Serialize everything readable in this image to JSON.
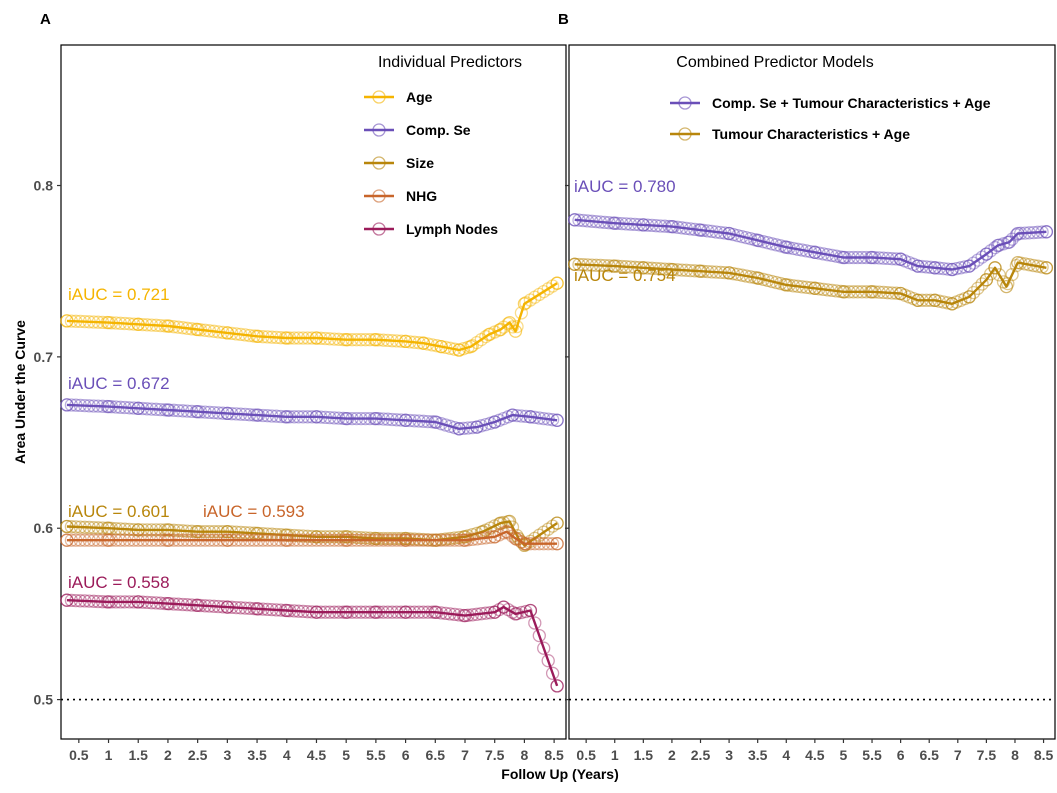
{
  "chart_data": [
    {
      "panel": "A",
      "type": "line",
      "legend_title": "Individual Predictors",
      "legend_position": "top-right",
      "xlabel": "Follow Up (Years)",
      "ylabel": "Area Under the Curve",
      "xlim": [
        0.2,
        8.7
      ],
      "ylim": [
        0.477,
        0.882
      ],
      "x_ticks": [
        "0.5",
        "1",
        "1.5",
        "2",
        "2.5",
        "3",
        "3.5",
        "4",
        "4.5",
        "5",
        "5.5",
        "6",
        "6.5",
        "7",
        "7.5",
        "8",
        "8.5"
      ],
      "y_ticks": [
        "0.5",
        "0.6",
        "0.7",
        "0.8"
      ],
      "reference_line": 0.5,
      "grid": false,
      "series": [
        {
          "name": "Age",
          "color": "#F5B400",
          "iauc_label": "iAUC = 0.721",
          "points": [
            [
              0.3,
              0.721
            ],
            [
              1.0,
              0.72
            ],
            [
              1.5,
              0.719
            ],
            [
              2.0,
              0.718
            ],
            [
              2.5,
              0.716
            ],
            [
              3.0,
              0.714
            ],
            [
              3.5,
              0.712
            ],
            [
              4.0,
              0.711
            ],
            [
              4.5,
              0.711
            ],
            [
              5.0,
              0.71
            ],
            [
              5.5,
              0.71
            ],
            [
              6.0,
              0.709
            ],
            [
              6.3,
              0.708
            ],
            [
              6.6,
              0.706
            ],
            [
              6.9,
              0.704
            ],
            [
              7.1,
              0.706
            ],
            [
              7.4,
              0.713
            ],
            [
              7.6,
              0.716
            ],
            [
              7.75,
              0.72
            ],
            [
              7.85,
              0.715
            ],
            [
              8.0,
              0.731
            ],
            [
              8.55,
              0.743
            ]
          ]
        },
        {
          "name": "Comp. Se",
          "color": "#6A4FB8",
          "iauc_label": "iAUC = 0.672",
          "points": [
            [
              0.3,
              0.672
            ],
            [
              1.0,
              0.671
            ],
            [
              1.5,
              0.67
            ],
            [
              2.0,
              0.669
            ],
            [
              2.5,
              0.668
            ],
            [
              3.0,
              0.667
            ],
            [
              3.5,
              0.666
            ],
            [
              4.0,
              0.665
            ],
            [
              4.5,
              0.665
            ],
            [
              5.0,
              0.664
            ],
            [
              5.5,
              0.664
            ],
            [
              6.0,
              0.663
            ],
            [
              6.5,
              0.662
            ],
            [
              6.9,
              0.658
            ],
            [
              7.2,
              0.659
            ],
            [
              7.5,
              0.662
            ],
            [
              7.8,
              0.666
            ],
            [
              8.1,
              0.665
            ],
            [
              8.55,
              0.663
            ]
          ]
        },
        {
          "name": "Size",
          "color": "#B8860B",
          "iauc_label": "iAUC = 0.601",
          "points": [
            [
              0.3,
              0.601
            ],
            [
              1.0,
              0.6
            ],
            [
              1.5,
              0.599
            ],
            [
              2.0,
              0.599
            ],
            [
              2.5,
              0.598
            ],
            [
              3.0,
              0.598
            ],
            [
              3.5,
              0.597
            ],
            [
              4.0,
              0.596
            ],
            [
              4.5,
              0.595
            ],
            [
              5.0,
              0.595
            ],
            [
              5.5,
              0.594
            ],
            [
              6.0,
              0.594
            ],
            [
              6.5,
              0.593
            ],
            [
              7.0,
              0.595
            ],
            [
              7.3,
              0.598
            ],
            [
              7.6,
              0.603
            ],
            [
              7.75,
              0.604
            ],
            [
              7.9,
              0.594
            ],
            [
              8.0,
              0.59
            ],
            [
              8.55,
              0.603
            ]
          ]
        },
        {
          "name": "NHG",
          "color": "#C8652A",
          "iauc_label": "iAUC = 0.593",
          "points": [
            [
              0.3,
              0.593
            ],
            [
              1.0,
              0.593
            ],
            [
              2.0,
              0.593
            ],
            [
              3.0,
              0.593
            ],
            [
              4.0,
              0.593
            ],
            [
              5.0,
              0.593
            ],
            [
              6.0,
              0.593
            ],
            [
              7.0,
              0.593
            ],
            [
              7.5,
              0.595
            ],
            [
              7.7,
              0.598
            ],
            [
              7.85,
              0.594
            ],
            [
              8.0,
              0.591
            ],
            [
              8.55,
              0.591
            ]
          ]
        },
        {
          "name": "Lymph Nodes",
          "color": "#9B1B5A",
          "iauc_label": "iAUC = 0.558",
          "points": [
            [
              0.3,
              0.558
            ],
            [
              1.0,
              0.557
            ],
            [
              1.5,
              0.557
            ],
            [
              2.0,
              0.556
            ],
            [
              2.5,
              0.555
            ],
            [
              3.0,
              0.554
            ],
            [
              3.5,
              0.553
            ],
            [
              4.0,
              0.552
            ],
            [
              4.5,
              0.551
            ],
            [
              5.0,
              0.551
            ],
            [
              5.5,
              0.551
            ],
            [
              6.0,
              0.551
            ],
            [
              6.5,
              0.551
            ],
            [
              7.0,
              0.549
            ],
            [
              7.5,
              0.551
            ],
            [
              7.65,
              0.554
            ],
            [
              7.85,
              0.55
            ],
            [
              8.1,
              0.552
            ],
            [
              8.55,
              0.508
            ]
          ]
        }
      ]
    },
    {
      "panel": "B",
      "type": "line",
      "legend_title": "Combined Predictor Models",
      "legend_position": "top-right",
      "xlabel": "Follow Up (Years)",
      "ylabel": "Area Under the Curve",
      "xlim": [
        0.2,
        8.7
      ],
      "ylim": [
        0.477,
        0.882
      ],
      "x_ticks": [
        "0.5",
        "1",
        "1.5",
        "2",
        "2.5",
        "3",
        "3.5",
        "4",
        "4.5",
        "5",
        "5.5",
        "6",
        "6.5",
        "7",
        "7.5",
        "8",
        "8.5"
      ],
      "y_ticks": [
        "0.5",
        "0.6",
        "0.7",
        "0.8"
      ],
      "reference_line": 0.5,
      "grid": false,
      "series": [
        {
          "name": "Comp. Se + Tumour Characteristics + Age",
          "color": "#6A4FB8",
          "iauc_label": "iAUC = 0.780",
          "points": [
            [
              0.3,
              0.78
            ],
            [
              1.0,
              0.778
            ],
            [
              1.5,
              0.777
            ],
            [
              2.0,
              0.776
            ],
            [
              2.5,
              0.774
            ],
            [
              3.0,
              0.772
            ],
            [
              3.5,
              0.768
            ],
            [
              4.0,
              0.764
            ],
            [
              4.5,
              0.761
            ],
            [
              5.0,
              0.758
            ],
            [
              5.5,
              0.758
            ],
            [
              6.0,
              0.757
            ],
            [
              6.3,
              0.753
            ],
            [
              6.6,
              0.752
            ],
            [
              6.9,
              0.751
            ],
            [
              7.2,
              0.753
            ],
            [
              7.5,
              0.76
            ],
            [
              7.7,
              0.765
            ],
            [
              7.9,
              0.767
            ],
            [
              8.05,
              0.772
            ],
            [
              8.55,
              0.773
            ]
          ]
        },
        {
          "name": "Tumour Characteristics + Age",
          "color": "#B8860B",
          "iauc_label": "iAUC = 0.754",
          "points": [
            [
              0.3,
              0.754
            ],
            [
              1.0,
              0.753
            ],
            [
              1.5,
              0.752
            ],
            [
              2.0,
              0.751
            ],
            [
              2.5,
              0.75
            ],
            [
              3.0,
              0.749
            ],
            [
              3.5,
              0.746
            ],
            [
              4.0,
              0.742
            ],
            [
              4.5,
              0.74
            ],
            [
              5.0,
              0.738
            ],
            [
              5.5,
              0.738
            ],
            [
              6.0,
              0.737
            ],
            [
              6.3,
              0.733
            ],
            [
              6.6,
              0.733
            ],
            [
              6.9,
              0.731
            ],
            [
              7.2,
              0.735
            ],
            [
              7.5,
              0.745
            ],
            [
              7.65,
              0.752
            ],
            [
              7.85,
              0.741
            ],
            [
              8.05,
              0.755
            ],
            [
              8.55,
              0.752
            ]
          ]
        }
      ]
    }
  ]
}
